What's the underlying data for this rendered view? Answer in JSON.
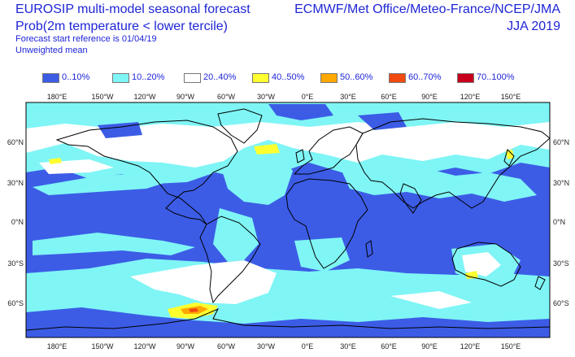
{
  "header": {
    "title_line1": "EUROSIP multi-model seasonal forecast",
    "title_line2": "Prob(2m temperature < lower tercile)",
    "forecast_ref": "Forecast start reference is 01/04/19",
    "weighting": "Unweighted mean",
    "centres": "ECMWF/Met Office/Meteo-France/NCEP/JMA",
    "season": "JJA 2019"
  },
  "legend": [
    {
      "label": "0..10%",
      "color": "#3c5ce6"
    },
    {
      "label": "10..20%",
      "color": "#7ff5f5"
    },
    {
      "label": "20..40%",
      "color": "#ffffff"
    },
    {
      "label": "40..50%",
      "color": "#ffff30"
    },
    {
      "label": "50..60%",
      "color": "#ffa800"
    },
    {
      "label": "60..70%",
      "color": "#f04a10"
    },
    {
      "label": "70..100%",
      "color": "#c8001e"
    }
  ],
  "map": {
    "longitude_labels": [
      "180°E",
      "150°W",
      "120°W",
      "90°W",
      "60°W",
      "30°W",
      "0°E",
      "30°E",
      "60°E",
      "90°E",
      "120°E",
      "150°E"
    ],
    "latitude_labels": [
      "60°N",
      "30°N",
      "0°N",
      "30°S",
      "60°S"
    ],
    "colors": {
      "low": "#3c5ce6",
      "mid": "#7ff5f5",
      "neutral": "#ffffff",
      "yellow": "#ffff30",
      "orange": "#ffa800",
      "red": "#f04a10",
      "coast": "#000000"
    }
  }
}
